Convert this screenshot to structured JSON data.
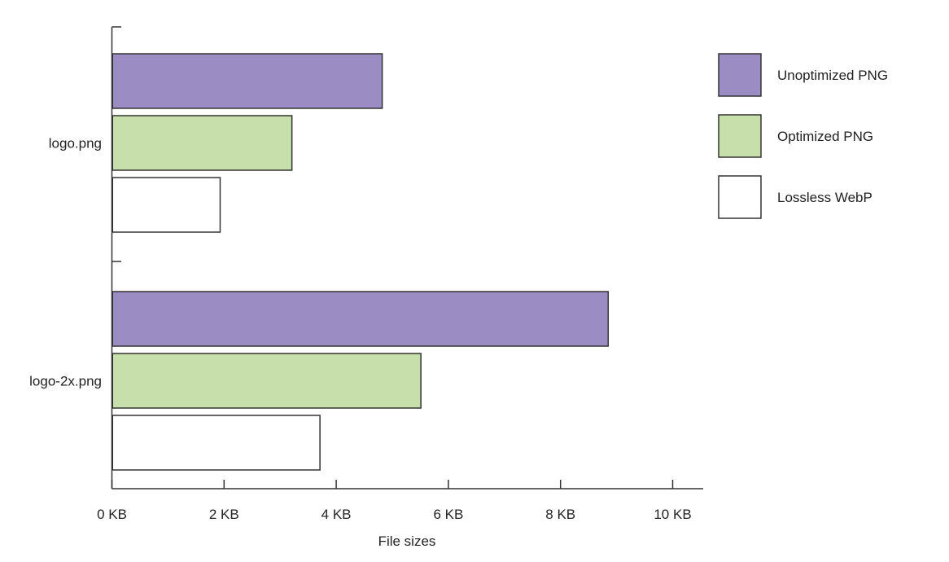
{
  "chart_data": {
    "type": "bar",
    "orientation": "horizontal",
    "categories": [
      "logo.png",
      "logo-2x.png"
    ],
    "series": [
      {
        "name": "Unoptimized PNG",
        "color": "#9b8dc3",
        "values": [
          4.82,
          8.85
        ]
      },
      {
        "name": "Optimized PNG",
        "color": "#c6dfab",
        "values": [
          3.21,
          5.51
        ]
      },
      {
        "name": "Lossless WebP",
        "color": "#ffffff",
        "values": [
          1.93,
          3.71
        ]
      }
    ],
    "x_ticks": [
      {
        "value": 0,
        "label": "0 KB"
      },
      {
        "value": 2,
        "label": "2 KB"
      },
      {
        "value": 4,
        "label": "4 KB"
      },
      {
        "value": 6,
        "label": "6 KB"
      },
      {
        "value": 8,
        "label": "8 KB"
      },
      {
        "value": 10,
        "label": "10 KB"
      }
    ],
    "xlim": [
      0,
      10.5
    ],
    "xlabel": "File sizes",
    "ylabel": "",
    "title": "",
    "grid": false,
    "legend_position": "right"
  }
}
